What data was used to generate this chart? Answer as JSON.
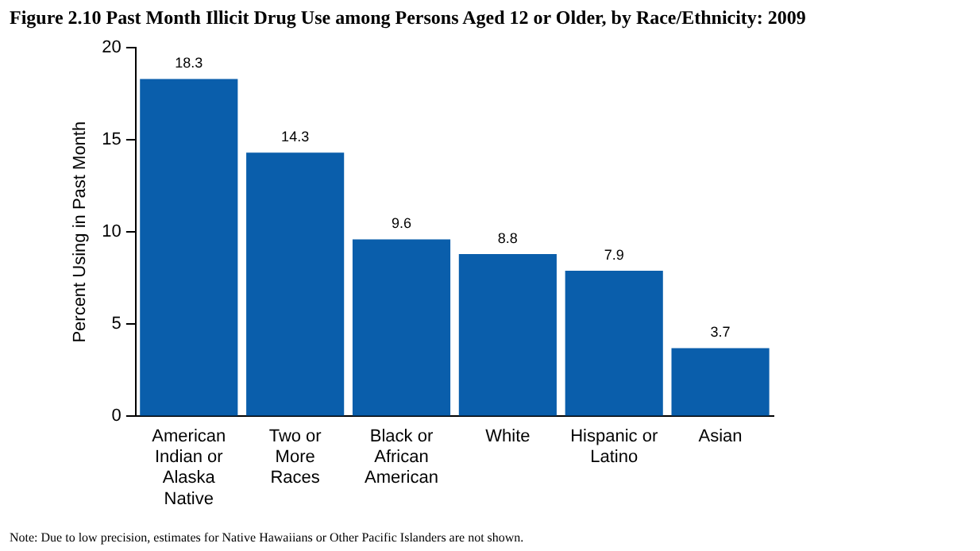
{
  "chart_data": {
    "type": "bar",
    "title": "Figure 2.10 Past Month Illicit Drug Use among Persons Aged 12 or Older, by Race/Ethnicity: 2009",
    "ylabel": "Percent Using in Past Month",
    "categories": [
      "American Indian or Alaska Native",
      "Two or More Races",
      "Black or African American",
      "White",
      "Hispanic or Latino",
      "Asian"
    ],
    "values": [
      18.3,
      14.3,
      9.6,
      8.8,
      7.9,
      3.7
    ],
    "color": "#0a5eab",
    "ylim": [
      0,
      20
    ],
    "yticks": [
      0,
      5,
      10,
      15,
      20
    ],
    "grid": false,
    "legend": false,
    "data_labels": true,
    "annotations": [
      "Note: Due to low precision, estimates for Native Hawaiians or Other Pacific Islanders are not shown."
    ]
  }
}
